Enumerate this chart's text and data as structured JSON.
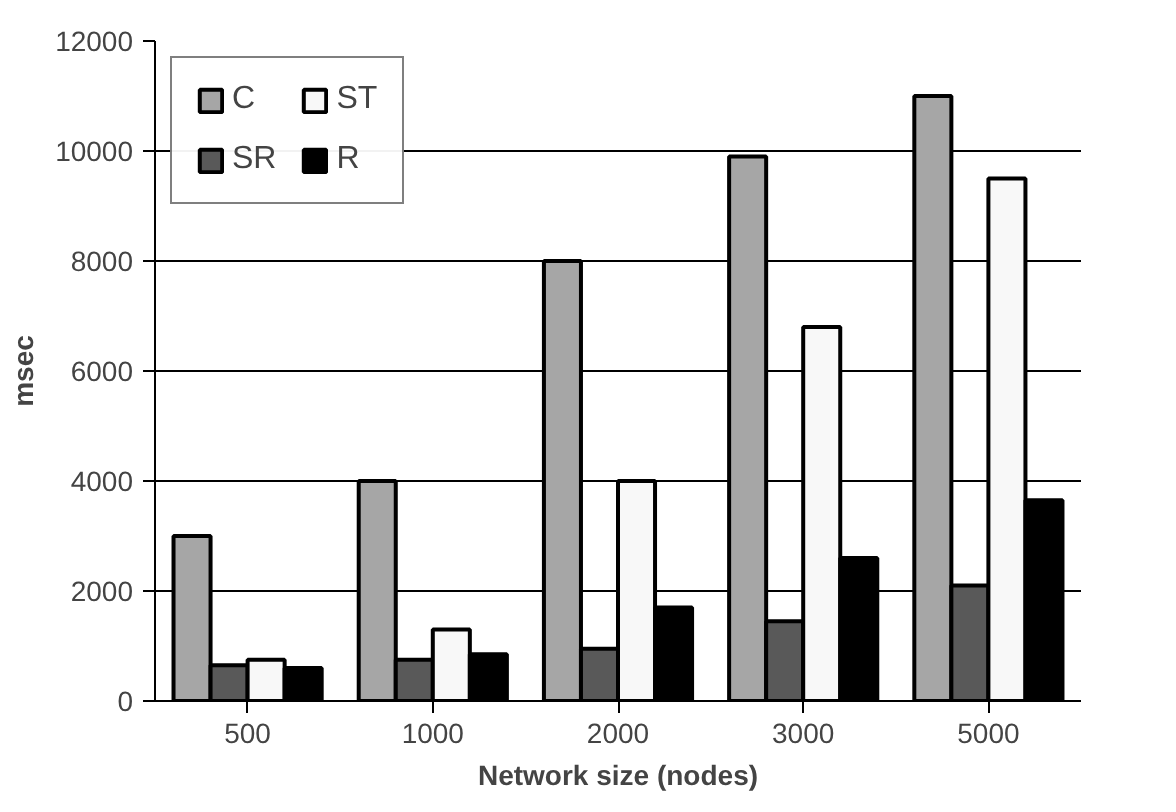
{
  "chart_data": {
    "type": "bar",
    "xlabel": "Network size (nodes)",
    "ylabel": "msec",
    "categories": [
      "500",
      "1000",
      "2000",
      "3000",
      "5000"
    ],
    "series": [
      {
        "name": "C",
        "color": "#a6a6a6",
        "values": [
          3000,
          4000,
          8000,
          9900,
          11000
        ]
      },
      {
        "name": "SR",
        "color": "#595959",
        "values": [
          650,
          750,
          950,
          1450,
          2100
        ]
      },
      {
        "name": "ST",
        "color": "#f8f8f8",
        "values": [
          750,
          1300,
          4000,
          6800,
          9500
        ]
      },
      {
        "name": "R",
        "color": "#000000",
        "values": [
          600,
          850,
          1700,
          2600,
          3650
        ]
      }
    ],
    "ylim": [
      0,
      12000
    ],
    "yticks": [
      0,
      2000,
      4000,
      6000,
      8000,
      10000,
      12000
    ],
    "grid": "y",
    "legend": "top left"
  }
}
